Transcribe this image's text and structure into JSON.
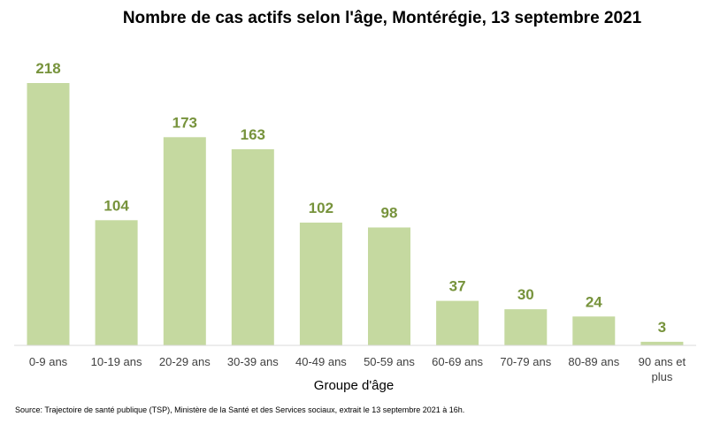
{
  "colors": {
    "bar": "#c5d9a0",
    "label": "#77933c",
    "axis": "#d9d9d9"
  },
  "chart_data": {
    "type": "bar",
    "title": "Nombre de cas actifs selon l'âge, Montérégie, 13 septembre 2021",
    "xlabel": "Groupe d'âge",
    "ylabel": "",
    "categories": [
      "0-9 ans",
      "10-19 ans",
      "20-29 ans",
      "30-39 ans",
      "40-49 ans",
      "50-59 ans",
      "60-69 ans",
      "70-79 ans",
      "80-89 ans",
      "90 ans et plus"
    ],
    "category_lines": [
      [
        "0-9 ans"
      ],
      [
        "10-19 ans"
      ],
      [
        "20-29 ans"
      ],
      [
        "30-39 ans"
      ],
      [
        "40-49 ans"
      ],
      [
        "50-59 ans"
      ],
      [
        "60-69 ans"
      ],
      [
        "70-79 ans"
      ],
      [
        "80-89 ans"
      ],
      [
        "90 ans et",
        "plus"
      ]
    ],
    "values": [
      218,
      104,
      173,
      163,
      102,
      98,
      37,
      30,
      24,
      3
    ],
    "ylim": [
      0,
      218
    ],
    "grid": false,
    "legend": "none",
    "source": "Source: Trajectoire de santé publique (TSP), Ministère de la Santé et des Services sociaux, extrait le 13 septembre 2021 à 16h."
  }
}
